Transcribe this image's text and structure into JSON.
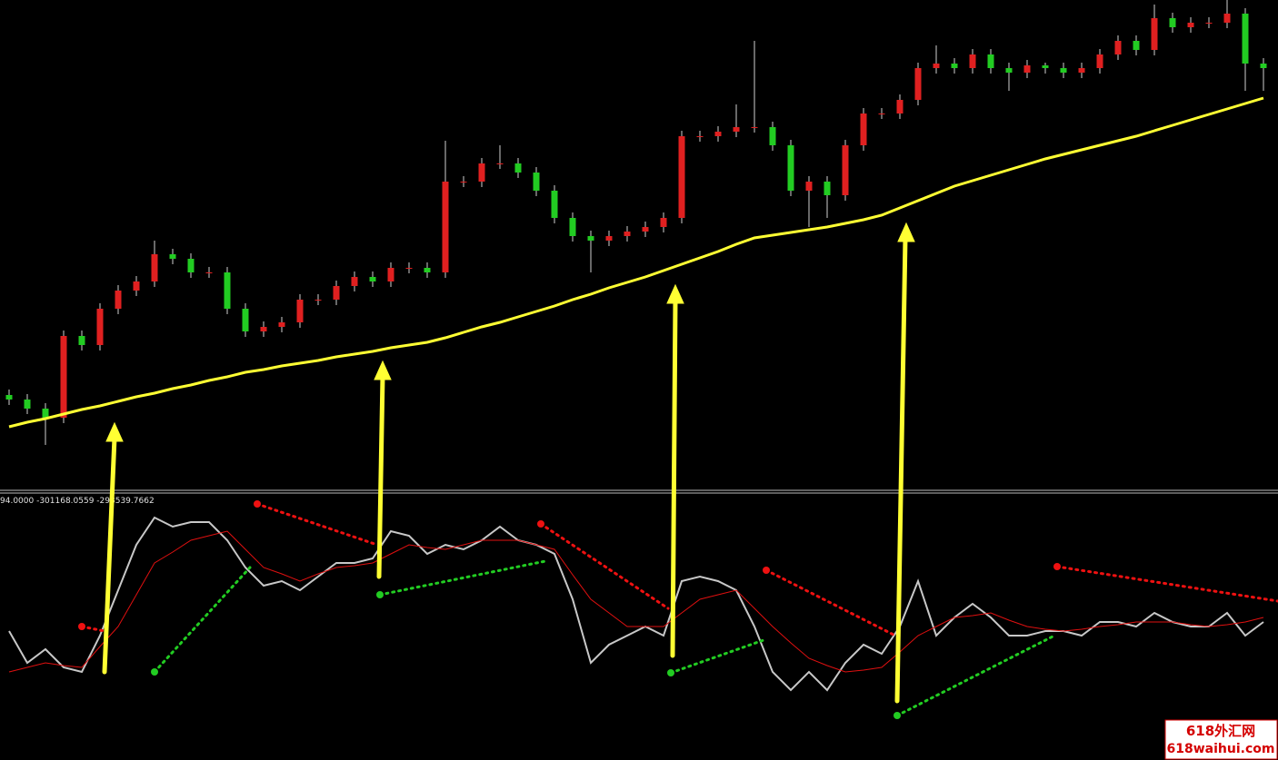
{
  "chart_data": [
    {
      "type": "candlestick",
      "xlim": [
        -0.5,
        69.8
      ],
      "ylim": [
        0,
        535
      ],
      "up_color": "#e02020",
      "down_color": "#22cc22",
      "wick_color": "#d0d0d0",
      "open": [
        100,
        95,
        85,
        75,
        165,
        155,
        195,
        215,
        225,
        255,
        250,
        235,
        235,
        195,
        170,
        175,
        180,
        205,
        205,
        220,
        230,
        225,
        240,
        240,
        235,
        335,
        335,
        355,
        355,
        345,
        325,
        295,
        275,
        270,
        275,
        280,
        285,
        295,
        385,
        385,
        390,
        395,
        395,
        375,
        325,
        335,
        320,
        375,
        410,
        410,
        425,
        460,
        465,
        460,
        475,
        460,
        455,
        463,
        460,
        455,
        460,
        475,
        490,
        480,
        515,
        505,
        510,
        510,
        520,
        465
      ],
      "high": [
        106,
        101,
        91,
        171,
        171,
        201,
        221,
        231,
        270,
        261,
        256,
        241,
        241,
        201,
        181,
        186,
        211,
        211,
        226,
        236,
        236,
        246,
        246,
        246,
        380,
        341,
        361,
        375,
        361,
        351,
        331,
        301,
        281,
        281,
        286,
        291,
        301,
        391,
        391,
        396,
        420,
        490,
        401,
        381,
        341,
        341,
        381,
        416,
        416,
        431,
        466,
        485,
        471,
        481,
        481,
        466,
        469,
        466,
        466,
        466,
        481,
        496,
        496,
        530,
        521,
        516,
        516,
        535,
        526,
        471
      ],
      "low": [
        89,
        79,
        45,
        69,
        149,
        149,
        189,
        209,
        219,
        244,
        229,
        229,
        189,
        164,
        164,
        169,
        174,
        199,
        199,
        214,
        219,
        219,
        234,
        229,
        229,
        329,
        329,
        349,
        339,
        319,
        289,
        269,
        235,
        264,
        269,
        274,
        279,
        289,
        379,
        379,
        384,
        389,
        369,
        319,
        285,
        295,
        314,
        369,
        404,
        404,
        419,
        454,
        454,
        454,
        454,
        435,
        449,
        454,
        449,
        449,
        454,
        469,
        474,
        474,
        499,
        499,
        504,
        504,
        435,
        435
      ],
      "close": [
        95,
        85,
        75,
        165,
        155,
        195,
        215,
        225,
        255,
        250,
        235,
        235,
        195,
        170,
        175,
        180,
        205,
        205,
        220,
        230,
        225,
        240,
        240,
        235,
        335,
        335,
        355,
        355,
        345,
        325,
        295,
        275,
        270,
        275,
        280,
        285,
        295,
        385,
        385,
        390,
        395,
        395,
        375,
        325,
        335,
        320,
        375,
        410,
        410,
        425,
        460,
        465,
        460,
        475,
        460,
        455,
        463,
        460,
        455,
        460,
        475,
        490,
        480,
        515,
        505,
        510,
        510,
        520,
        465,
        460
      ],
      "moving_average": {
        "color": "#ffff33",
        "values": [
          65,
          70,
          74,
          79,
          84,
          88,
          93,
          98,
          102,
          107,
          111,
          116,
          120,
          125,
          128,
          132,
          135,
          138,
          142,
          145,
          148,
          152,
          155,
          158,
          163,
          169,
          175,
          180,
          186,
          192,
          198,
          205,
          211,
          218,
          224,
          230,
          237,
          244,
          251,
          258,
          266,
          273,
          276,
          279,
          282,
          285,
          289,
          293,
          298,
          306,
          314,
          322,
          330,
          336,
          342,
          348,
          354,
          360,
          365,
          370,
          375,
          380,
          385,
          391,
          397,
          403,
          409,
          415,
          421,
          427
        ]
      }
    },
    {
      "type": "line",
      "header": "94.0000 -301168.0559 -298539.7662",
      "xlim": [
        -0.5,
        69.8
      ],
      "ylim": [
        0,
        292
      ],
      "series": [
        {
          "color": "#c8c8c8",
          "values": [
            142,
            107,
            122,
            102,
            97,
            137,
            187,
            237,
            267,
            257,
            262,
            262,
            242,
            212,
            192,
            197,
            187,
            202,
            217,
            217,
            222,
            252,
            247,
            227,
            237,
            232,
            242,
            257,
            242,
            237,
            227,
            177,
            107,
            127,
            137,
            147,
            137,
            197,
            202,
            197,
            187,
            147,
            97,
            77,
            97,
            77,
            107,
            127,
            117,
            147,
            197,
            137,
            157,
            172,
            157,
            137,
            137,
            142,
            142,
            137,
            152,
            152,
            147,
            162,
            152,
            147,
            147,
            162,
            137,
            152
          ]
        },
        {
          "color": "#e01010",
          "values": [
            97,
            102,
            107,
            104,
            102,
            125,
            147,
            182,
            217,
            229,
            242,
            247,
            252,
            232,
            212,
            205,
            197,
            205,
            212,
            214,
            217,
            227,
            237,
            234,
            232,
            237,
            242,
            242,
            242,
            237,
            232,
            204,
            177,
            162,
            147,
            147,
            147,
            162,
            177,
            182,
            187,
            167,
            147,
            129,
            112,
            104,
            97,
            99,
            102,
            119,
            137,
            147,
            157,
            159,
            162,
            154,
            147,
            144,
            142,
            144,
            147,
            149,
            152,
            152,
            152,
            149,
            147,
            149,
            152,
            157
          ]
        }
      ],
      "trend_lines": [
        {
          "color": "#ee1111",
          "from": [
            4,
            147
          ],
          "to": [
            5.25,
            142
          ]
        },
        {
          "color": "#ee1111",
          "from": [
            13.65,
            282
          ],
          "to": [
            20.25,
            237
          ]
        },
        {
          "color": "#ee1111",
          "from": [
            29.25,
            260
          ],
          "to": [
            36.25,
            167
          ]
        },
        {
          "color": "#ee1111",
          "from": [
            41.65,
            209
          ],
          "to": [
            48.75,
            137
          ]
        },
        {
          "color": "#ee1111",
          "from": [
            57.65,
            213
          ],
          "to": [
            69.8,
            175
          ]
        },
        {
          "color": "#22cc22",
          "from": [
            8,
            97
          ],
          "to": [
            13.25,
            212
          ]
        },
        {
          "color": "#22cc22",
          "from": [
            20.4,
            182
          ],
          "to": [
            29.5,
            219
          ]
        },
        {
          "color": "#22cc22",
          "from": [
            36.4,
            96
          ],
          "to": [
            41.5,
            132
          ]
        },
        {
          "color": "#22cc22",
          "from": [
            48.85,
            49
          ],
          "to": [
            57.5,
            137
          ]
        }
      ]
    }
  ],
  "watermark": {
    "line1": "618外汇网",
    "line2": "618waihui.com"
  }
}
